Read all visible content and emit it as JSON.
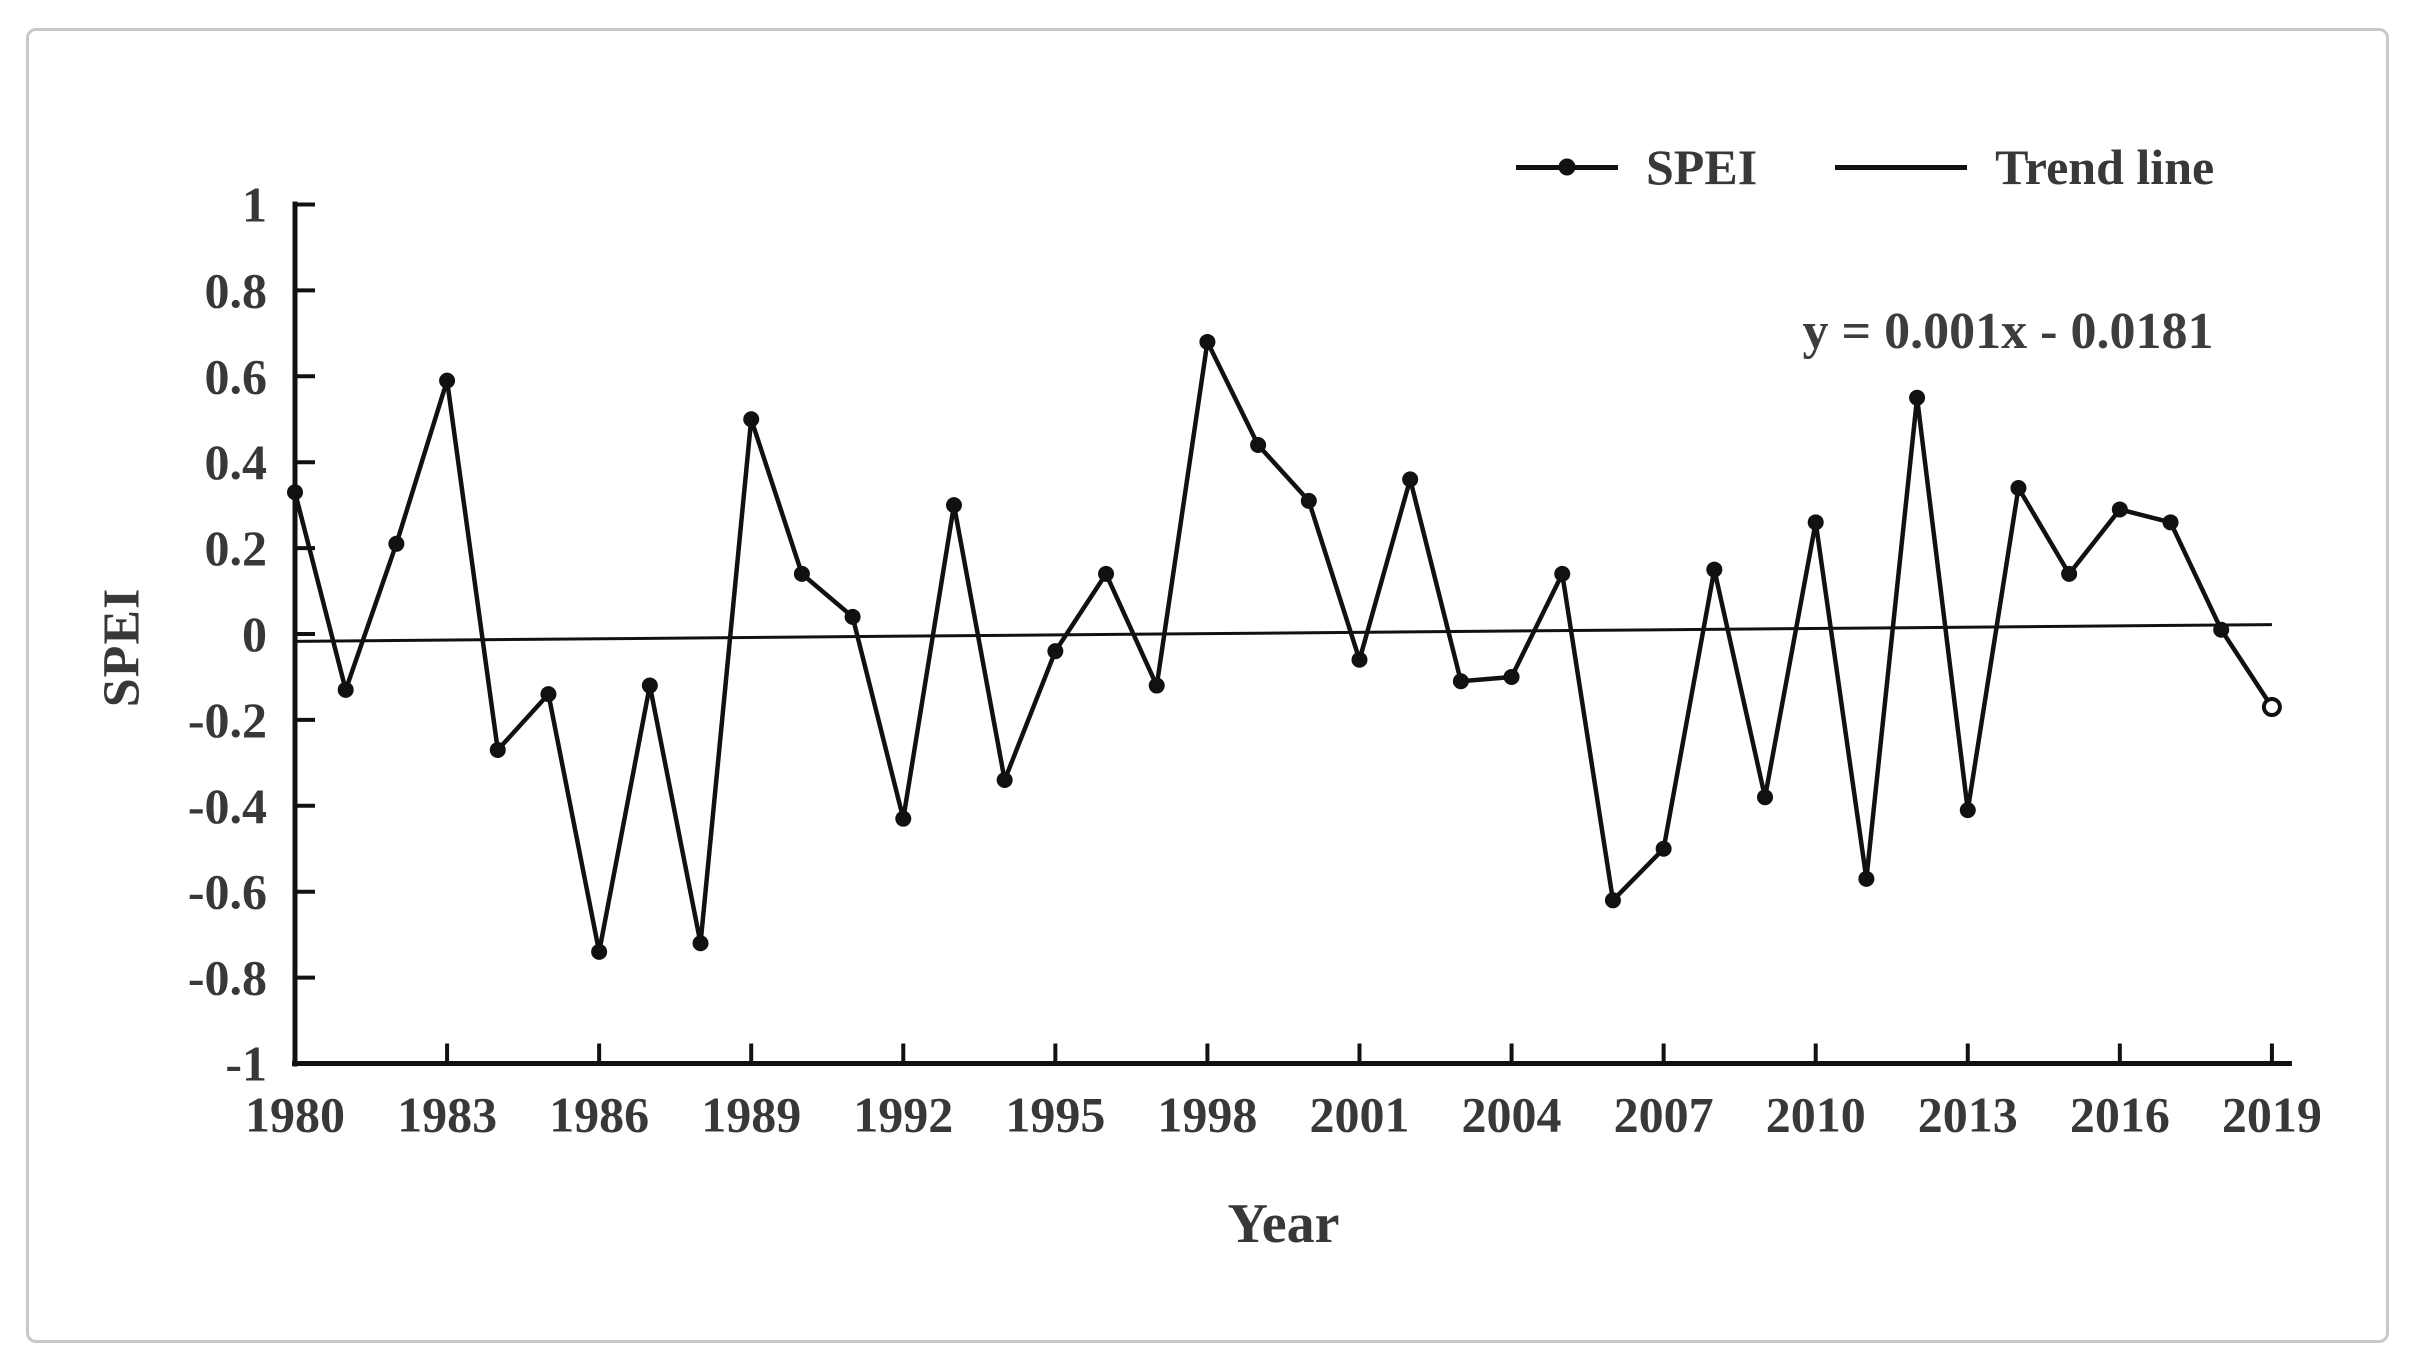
{
  "figure": {
    "equation": "y = 0.001x - 0.0181",
    "legend": [
      {
        "label": "SPEI",
        "swatch": "line-with-marker"
      },
      {
        "label": "Trend line",
        "swatch": "plain-line"
      }
    ]
  },
  "chart_data": {
    "type": "line",
    "title": "",
    "xlabel": "Year",
    "ylabel": "SPEI",
    "xlim": [
      1980,
      2019
    ],
    "ylim": [
      -1,
      1
    ],
    "grid": false,
    "legend_position": "top-right",
    "x_ticks": [
      1980,
      1983,
      1986,
      1989,
      1992,
      1995,
      1998,
      2001,
      2004,
      2007,
      2010,
      2013,
      2016,
      2019
    ],
    "y_ticks": [
      1,
      0.8,
      0.6,
      0.4,
      0.2,
      0,
      -0.2,
      -0.4,
      -0.6,
      -0.8,
      -1
    ],
    "y_tick_labels": [
      "1",
      "0.8",
      "0.6",
      "0.4",
      "0.2",
      "0",
      "-0.2",
      "-0.4",
      "-0.6",
      "-0.8",
      "-1"
    ],
    "series": [
      {
        "name": "SPEI",
        "type": "line-marker",
        "x": [
          1980,
          1981,
          1982,
          1983,
          1984,
          1985,
          1986,
          1987,
          1988,
          1989,
          1990,
          1991,
          1992,
          1993,
          1994,
          1995,
          1996,
          1997,
          1998,
          1999,
          2000,
          2001,
          2002,
          2003,
          2004,
          2005,
          2006,
          2007,
          2008,
          2009,
          2010,
          2011,
          2012,
          2013,
          2014,
          2015,
          2016,
          2017,
          2018,
          2019
        ],
        "values": [
          0.33,
          -0.13,
          0.21,
          0.59,
          -0.27,
          -0.14,
          -0.74,
          -0.12,
          -0.72,
          0.5,
          0.14,
          0.04,
          -0.43,
          0.3,
          -0.34,
          -0.04,
          0.14,
          -0.12,
          0.68,
          0.44,
          0.31,
          -0.06,
          0.36,
          -0.11,
          -0.1,
          0.14,
          -0.62,
          -0.5,
          0.15,
          -0.38,
          0.26,
          -0.57,
          0.55,
          -0.41,
          0.34,
          0.14,
          0.29,
          0.26,
          0.01,
          -0.17
        ],
        "hollow_marker_x": [
          2019
        ]
      },
      {
        "name": "Trend line",
        "type": "line",
        "equation": "y = 0.001x - 0.0181",
        "slope_per_index": 0.001,
        "intercept": -0.0181,
        "index_range": [
          1,
          40
        ]
      }
    ],
    "colors": {
      "line": "#111111",
      "text": "#383838"
    }
  }
}
